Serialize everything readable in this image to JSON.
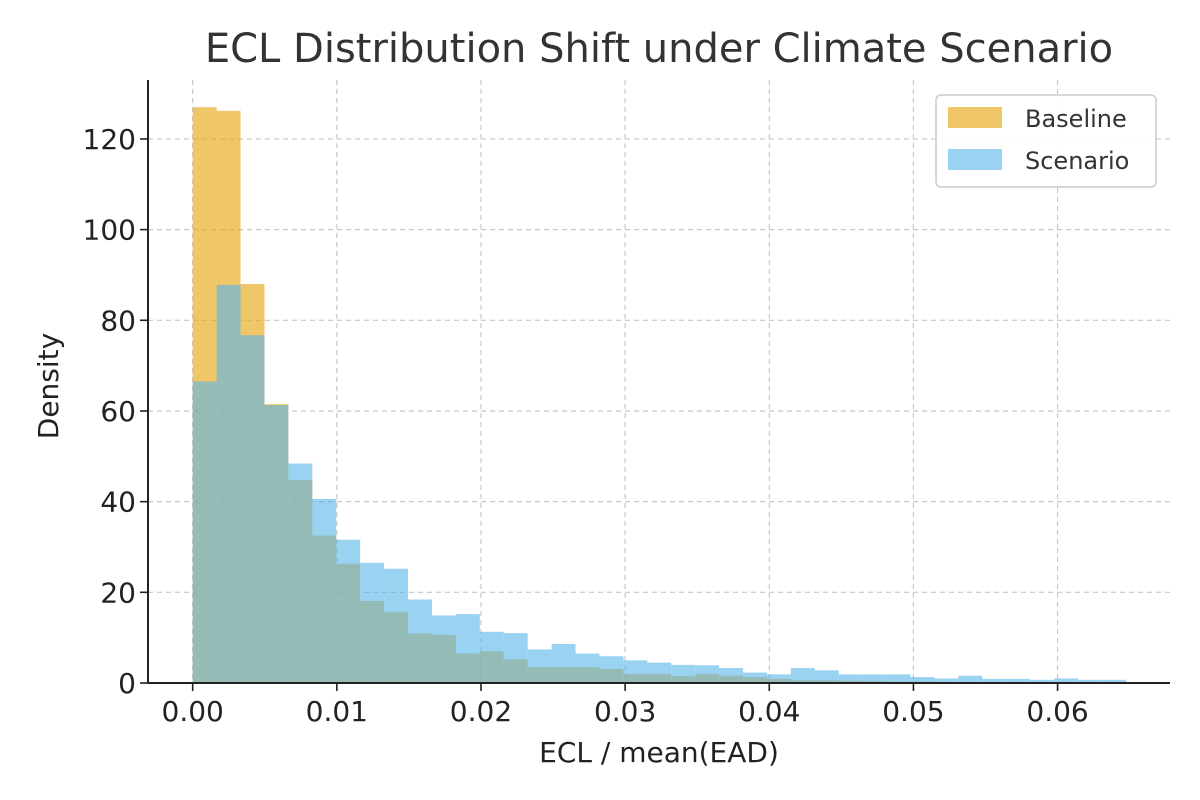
{
  "chart_data": {
    "type": "histogram",
    "title": "ECL Distribution Shift under Climate Scenario",
    "xlabel": "ECL / mean(EAD)",
    "ylabel": "Density",
    "xlim": [
      -0.0031,
      0.0678
    ],
    "ylim": [
      0,
      133
    ],
    "xticks": [
      0.0,
      0.01,
      0.02,
      0.03,
      0.04,
      0.05,
      0.06
    ],
    "xtick_labels": [
      "0.00",
      "0.01",
      "0.02",
      "0.03",
      "0.04",
      "0.05",
      "0.06"
    ],
    "yticks": [
      0,
      20,
      40,
      60,
      80,
      100,
      120
    ],
    "ytick_labels": [
      "0",
      "20",
      "40",
      "60",
      "80",
      "100",
      "120"
    ],
    "grid": true,
    "legend_position": "top-right",
    "bin_width": 0.00166,
    "series": [
      {
        "name": "Baseline",
        "color": "#E6A817",
        "opacity": 0.65,
        "bins": [
          {
            "x0": 0.0,
            "value": 127.0
          },
          {
            "x0": 0.00166,
            "value": 126.2
          },
          {
            "x0": 0.00332,
            "value": 88.0
          },
          {
            "x0": 0.00498,
            "value": 61.5
          },
          {
            "x0": 0.00664,
            "value": 44.8
          },
          {
            "x0": 0.0083,
            "value": 32.5
          },
          {
            "x0": 0.00996,
            "value": 26.3
          },
          {
            "x0": 0.01162,
            "value": 18.1
          },
          {
            "x0": 0.01328,
            "value": 15.6
          },
          {
            "x0": 0.01494,
            "value": 10.9
          },
          {
            "x0": 0.0166,
            "value": 10.6
          },
          {
            "x0": 0.01826,
            "value": 6.5
          },
          {
            "x0": 0.01992,
            "value": 7.0
          },
          {
            "x0": 0.02158,
            "value": 5.2
          },
          {
            "x0": 0.02324,
            "value": 3.5
          },
          {
            "x0": 0.0249,
            "value": 3.5
          },
          {
            "x0": 0.02656,
            "value": 3.5
          },
          {
            "x0": 0.02822,
            "value": 3.1
          },
          {
            "x0": 0.02988,
            "value": 2.0
          },
          {
            "x0": 0.03154,
            "value": 2.0
          },
          {
            "x0": 0.0332,
            "value": 1.5
          },
          {
            "x0": 0.03486,
            "value": 2.0
          },
          {
            "x0": 0.03652,
            "value": 1.6
          },
          {
            "x0": 0.03818,
            "value": 1.3
          },
          {
            "x0": 0.03984,
            "value": 0.9
          },
          {
            "x0": 0.0415,
            "value": 0.6
          },
          {
            "x0": 0.04316,
            "value": 0.6
          },
          {
            "x0": 0.04482,
            "value": 0.5
          },
          {
            "x0": 0.04648,
            "value": 0.4
          },
          {
            "x0": 0.04814,
            "value": 0.3
          },
          {
            "x0": 0.0498,
            "value": 0.3
          }
        ]
      },
      {
        "name": "Scenario",
        "color": "#56B4E9",
        "opacity": 0.6,
        "bins": [
          {
            "x0": 0.0,
            "value": 66.5
          },
          {
            "x0": 0.00166,
            "value": 87.8
          },
          {
            "x0": 0.00332,
            "value": 76.7
          },
          {
            "x0": 0.00498,
            "value": 61.3
          },
          {
            "x0": 0.00664,
            "value": 48.4
          },
          {
            "x0": 0.0083,
            "value": 40.6
          },
          {
            "x0": 0.00996,
            "value": 31.6
          },
          {
            "x0": 0.01162,
            "value": 26.5
          },
          {
            "x0": 0.01328,
            "value": 25.2
          },
          {
            "x0": 0.01494,
            "value": 18.4
          },
          {
            "x0": 0.0166,
            "value": 14.9
          },
          {
            "x0": 0.01826,
            "value": 15.2
          },
          {
            "x0": 0.01992,
            "value": 11.3
          },
          {
            "x0": 0.02158,
            "value": 11.0
          },
          {
            "x0": 0.02324,
            "value": 7.4
          },
          {
            "x0": 0.0249,
            "value": 8.6
          },
          {
            "x0": 0.02656,
            "value": 6.5
          },
          {
            "x0": 0.02822,
            "value": 5.9
          },
          {
            "x0": 0.02988,
            "value": 5.0
          },
          {
            "x0": 0.03154,
            "value": 4.5
          },
          {
            "x0": 0.0332,
            "value": 4.0
          },
          {
            "x0": 0.03486,
            "value": 3.9
          },
          {
            "x0": 0.03652,
            "value": 3.3
          },
          {
            "x0": 0.03818,
            "value": 2.3
          },
          {
            "x0": 0.03984,
            "value": 1.9
          },
          {
            "x0": 0.0415,
            "value": 3.3
          },
          {
            "x0": 0.04316,
            "value": 2.8
          },
          {
            "x0": 0.04482,
            "value": 1.9
          },
          {
            "x0": 0.04648,
            "value": 1.9
          },
          {
            "x0": 0.04814,
            "value": 1.9
          },
          {
            "x0": 0.0498,
            "value": 1.3
          },
          {
            "x0": 0.05146,
            "value": 1.0
          },
          {
            "x0": 0.05312,
            "value": 1.6
          },
          {
            "x0": 0.05478,
            "value": 0.9
          },
          {
            "x0": 0.05644,
            "value": 0.9
          },
          {
            "x0": 0.0581,
            "value": 0.7
          },
          {
            "x0": 0.05976,
            "value": 1.0
          },
          {
            "x0": 0.06142,
            "value": 0.7
          },
          {
            "x0": 0.06308,
            "value": 0.7
          }
        ]
      }
    ]
  }
}
